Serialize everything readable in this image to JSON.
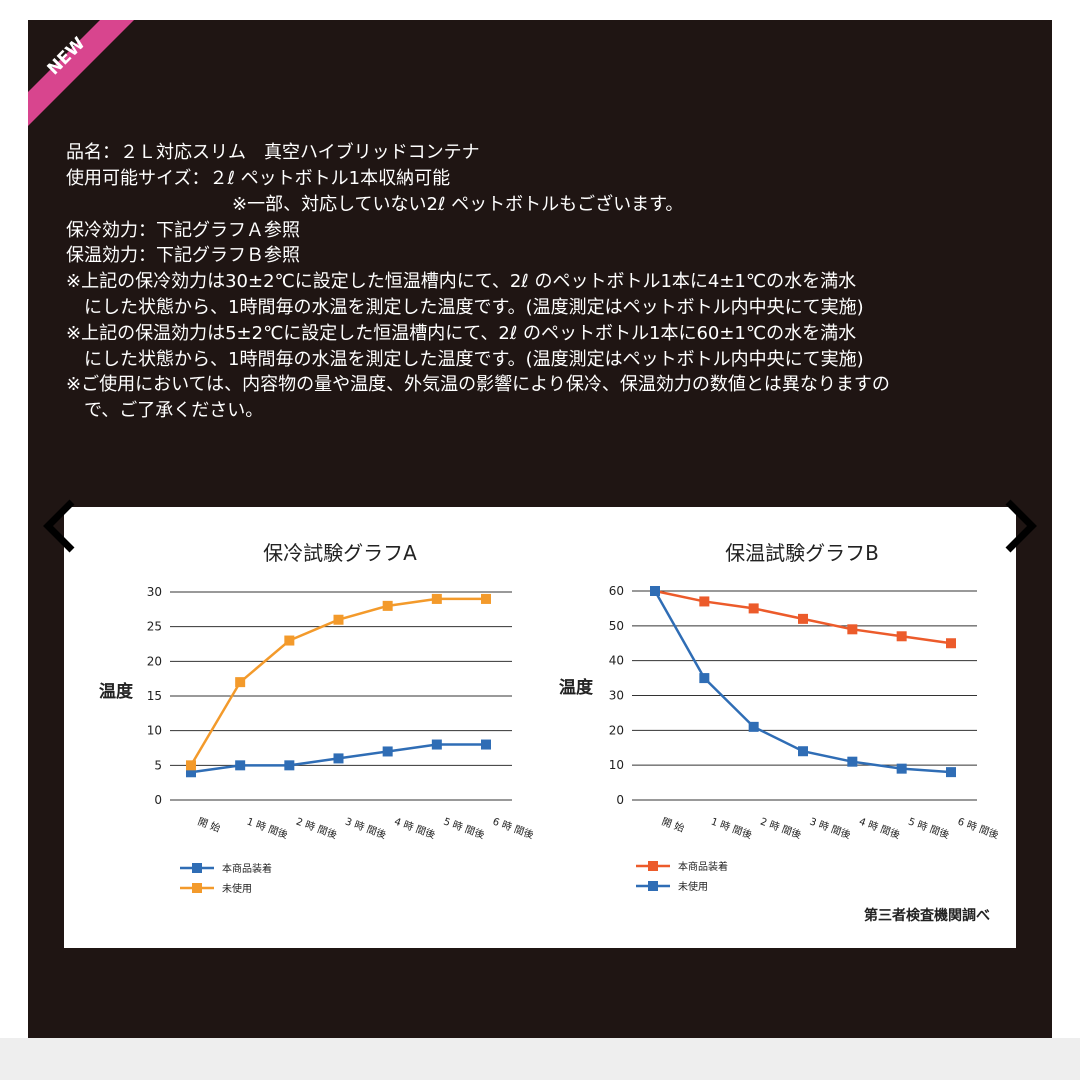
{
  "badge": "NEW",
  "spec_lines": [
    "品名：２Ｌ対応スリム　真空ハイブリッドコンテナ",
    "使用可能サイズ：２ℓ ペットボトル1本収納可能",
    "※一部、対応していない2ℓ ペットボトルもございます。",
    "保冷効力：下記グラフＡ参照",
    "保温効力：下記グラフＢ参照",
    "※上記の保冷効力は30±2℃に設定した恒温槽内にて、2ℓ のペットボトル1本に4±1℃の水を満水",
    "にした状態から、1時間毎の水温を測定した温度です。(温度測定はペットボトル内中央にて実施)",
    "※上記の保温効力は5±2℃に設定した恒温槽内にて、2ℓ のペットボトル1本に60±1℃の水を満水",
    "にした状態から、1時間毎の水温を測定した温度です。(温度測定はペットボトル内中央にて実施)",
    "※ご使用においては、内容物の量や温度、外気温の影響により保冷、保温効力の数値とは異なりますの",
    "で、ご了承ください。"
  ],
  "chart_data": [
    {
      "type": "line",
      "title": "保冷試験グラフA",
      "y_label": "温度",
      "categories": [
        "開 始",
        "1 時 間後",
        "2 時 間後",
        "3 時 間後",
        "4 時 間後",
        "5 時 間後",
        "6 時 間後"
      ],
      "series": [
        {
          "name": "本商品装着",
          "color": "#2f6db5",
          "values": [
            4,
            5,
            5,
            6,
            7,
            8,
            8
          ]
        },
        {
          "name": "未使用",
          "color": "#f39a2b",
          "values": [
            5,
            17,
            23,
            26,
            28,
            29,
            29
          ]
        }
      ],
      "ylim": [
        0,
        30
      ],
      "yticks": [
        0,
        5,
        10,
        15,
        20,
        25,
        30
      ],
      "grid": true
    },
    {
      "type": "line",
      "title": "保温試験グラフB",
      "y_label": "温度",
      "categories": [
        "開 始",
        "1 時 間後",
        "2 時 間後",
        "3 時 間後",
        "4 時 間後",
        "5 時 間後",
        "6 時 間後"
      ],
      "series": [
        {
          "name": "本商品装着",
          "color": "#ec5b2b",
          "values": [
            60,
            57,
            55,
            52,
            49,
            47,
            45
          ]
        },
        {
          "name": "未使用",
          "color": "#2f6db5",
          "values": [
            60,
            35,
            21,
            14,
            11,
            9,
            8
          ]
        }
      ],
      "ylim": [
        0,
        60
      ],
      "yticks": [
        0,
        10,
        20,
        30,
        40,
        50,
        60
      ],
      "grid": true
    }
  ],
  "source_note": "第三者検査機関調べ"
}
